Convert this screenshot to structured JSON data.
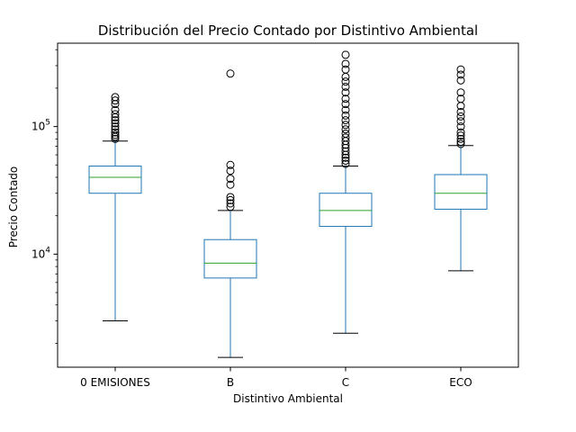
{
  "chart_data": {
    "type": "box",
    "title": "Distribución del Precio Contado por Distintivo Ambiental",
    "xlabel": "Distintivo Ambiental",
    "ylabel": "Precio Contado",
    "yscale": "log",
    "ylim": [
      1300,
      450000
    ],
    "y_tick_labels": [
      {
        "value": 10000,
        "base": "10",
        "exp": "4"
      },
      {
        "value": 100000,
        "base": "10",
        "exp": "5"
      }
    ],
    "grid": false,
    "colors": {
      "box": "#1f77b4",
      "median": "#2ca02c",
      "whisker_cap": "#000000",
      "flier": "#000000"
    },
    "categories": [
      "0 EMISIONES",
      "B",
      "C",
      "ECO"
    ],
    "boxes": [
      {
        "name": "0 EMISIONES",
        "whisker_low": 3000,
        "q1": 30000,
        "median": 40000,
        "q3": 49000,
        "whisker_high": 77000,
        "outliers": [
          80000,
          83000,
          86000,
          90000,
          95000,
          100000,
          106000,
          112000,
          118000,
          125000,
          135000,
          150000,
          160000,
          170000
        ]
      },
      {
        "name": "B",
        "whisker_low": 1550,
        "q1": 6500,
        "median": 8500,
        "q3": 13000,
        "whisker_high": 22000,
        "outliers": [
          23500,
          25000,
          26500,
          28000,
          35000,
          39000,
          45000,
          50000,
          260000
        ]
      },
      {
        "name": "C",
        "whisker_low": 2400,
        "q1": 16500,
        "median": 22000,
        "q3": 30000,
        "whisker_high": 49000,
        "outliers": [
          51000,
          54000,
          57000,
          60000,
          64000,
          68000,
          72000,
          77000,
          82000,
          88000,
          95000,
          103000,
          112000,
          122000,
          135000,
          150000,
          165000,
          185000,
          205000,
          225000,
          245000,
          280000,
          310000,
          365000
        ]
      },
      {
        "name": "ECO",
        "whisker_low": 7400,
        "q1": 22500,
        "median": 30000,
        "q3": 42000,
        "whisker_high": 71000,
        "outliers": [
          73000,
          76000,
          80000,
          85000,
          90000,
          100000,
          110000,
          120000,
          130000,
          145000,
          165000,
          185000,
          230000,
          255000,
          280000
        ]
      }
    ]
  }
}
